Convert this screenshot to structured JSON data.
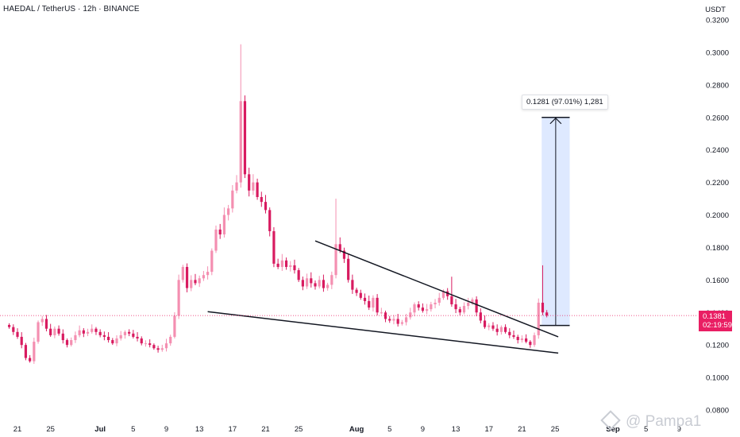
{
  "header": {
    "title": "HAEDAL / TetherUS · 12h · BINANCE"
  },
  "axis": {
    "unit": "USDT"
  },
  "price_tag": {
    "price": "0.1381",
    "countdown": "02:19:59"
  },
  "measure": {
    "label": "0.1281 (97.01%) 1,281"
  },
  "watermark": {
    "text": "@ Pampa1"
  },
  "colors": {
    "up": "#f48fb1",
    "down": "#d81b60",
    "measure_fill": "#d6e4ff",
    "accent": "#e91e63"
  },
  "chart_data": {
    "type": "candlestick",
    "interval": "12h",
    "start_date": "2025-06-20",
    "ylim": [
      0.08,
      0.32
    ],
    "y_ticks": [
      "0.0800",
      "0.1000",
      "0.1200",
      "0.1400",
      "0.1600",
      "0.1800",
      "0.2000",
      "0.2200",
      "0.2400",
      "0.2600",
      "0.2800",
      "0.3000",
      "0.3200"
    ],
    "x_ticks": [
      {
        "label": "21",
        "date": "2025-06-21"
      },
      {
        "label": "25",
        "date": "2025-06-25"
      },
      {
        "label": "Jul",
        "date": "2025-07-01",
        "bold": true
      },
      {
        "label": "5",
        "date": "2025-07-05"
      },
      {
        "label": "9",
        "date": "2025-07-09"
      },
      {
        "label": "13",
        "date": "2025-07-13"
      },
      {
        "label": "17",
        "date": "2025-07-17"
      },
      {
        "label": "21",
        "date": "2025-07-21"
      },
      {
        "label": "25",
        "date": "2025-07-25"
      },
      {
        "label": "Aug",
        "date": "2025-08-01",
        "bold": true
      },
      {
        "label": "5",
        "date": "2025-08-05"
      },
      {
        "label": "9",
        "date": "2025-08-09"
      },
      {
        "label": "13",
        "date": "2025-08-13"
      },
      {
        "label": "17",
        "date": "2025-08-17"
      },
      {
        "label": "21",
        "date": "2025-08-21"
      },
      {
        "label": "25",
        "date": "2025-08-25"
      },
      {
        "label": "Sep",
        "date": "2025-09-01",
        "bold": true
      },
      {
        "label": "5",
        "date": "2025-09-05"
      },
      {
        "label": "9",
        "date": "2025-09-09"
      }
    ],
    "last_price": 0.1381,
    "closes": [
      0.131,
      0.128,
      0.125,
      0.12,
      0.112,
      0.11,
      0.122,
      0.134,
      0.136,
      0.13,
      0.126,
      0.13,
      0.127,
      0.123,
      0.12,
      0.123,
      0.126,
      0.129,
      0.127,
      0.128,
      0.13,
      0.128,
      0.126,
      0.125,
      0.123,
      0.121,
      0.124,
      0.126,
      0.128,
      0.127,
      0.125,
      0.124,
      0.121,
      0.121,
      0.12,
      0.118,
      0.117,
      0.118,
      0.121,
      0.125,
      0.138,
      0.16,
      0.168,
      0.155,
      0.16,
      0.158,
      0.161,
      0.163,
      0.165,
      0.178,
      0.191,
      0.188,
      0.2,
      0.204,
      0.215,
      0.22,
      0.27,
      0.225,
      0.215,
      0.22,
      0.211,
      0.208,
      0.203,
      0.19,
      0.17,
      0.168,
      0.172,
      0.168,
      0.169,
      0.166,
      0.16,
      0.156,
      0.161,
      0.158,
      0.156,
      0.16,
      0.155,
      0.157,
      0.163,
      0.182,
      0.178,
      0.173,
      0.16,
      0.154,
      0.152,
      0.149,
      0.147,
      0.143,
      0.149,
      0.14,
      0.14,
      0.136,
      0.135,
      0.136,
      0.133,
      0.134,
      0.137,
      0.14,
      0.145,
      0.143,
      0.141,
      0.142,
      0.145,
      0.146,
      0.149,
      0.153,
      0.15,
      0.145,
      0.142,
      0.14,
      0.144,
      0.146,
      0.148,
      0.14,
      0.135,
      0.131,
      0.132,
      0.13,
      0.128,
      0.131,
      0.128,
      0.126,
      0.125,
      0.123,
      0.124,
      0.122,
      0.12,
      0.126,
      0.146,
      0.14,
      0.1381
    ],
    "spikes": [
      {
        "index": 56,
        "high": 0.305
      },
      {
        "index": 79,
        "high": 0.21
      },
      {
        "index": 107,
        "high": 0.162
      },
      {
        "index": 129,
        "high": 0.169
      }
    ],
    "trendlines": [
      {
        "name": "upper",
        "from": {
          "date": "2025-07-27",
          "price": 0.184
        },
        "to": {
          "date": "2025-08-25",
          "price": 0.125
        }
      },
      {
        "name": "lower",
        "from": {
          "date": "2025-07-14",
          "price": 0.1405
        },
        "to": {
          "date": "2025-08-25",
          "price": 0.115
        }
      }
    ],
    "measure_box": {
      "from_date": "2025-08-23",
      "to_date": "2025-08-26",
      "low": 0.132,
      "high": 0.26
    }
  }
}
